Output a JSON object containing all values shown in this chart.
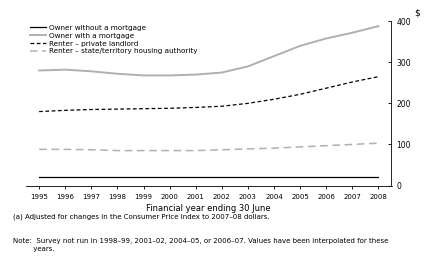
{
  "years": [
    1995,
    1996,
    1997,
    1998,
    1999,
    2000,
    2001,
    2002,
    2003,
    2004,
    2005,
    2006,
    2007,
    2008
  ],
  "owner_without_mortgage": [
    20,
    20,
    20,
    20,
    20,
    20,
    20,
    20,
    20,
    20,
    20,
    20,
    20,
    20
  ],
  "owner_with_mortgage": [
    280,
    282,
    278,
    272,
    268,
    268,
    270,
    275,
    290,
    315,
    340,
    358,
    372,
    388
  ],
  "renter_private": [
    180,
    183,
    185,
    186,
    187,
    188,
    190,
    193,
    200,
    210,
    222,
    237,
    252,
    265
  ],
  "renter_state": [
    88,
    88,
    87,
    85,
    85,
    85,
    85,
    87,
    89,
    91,
    94,
    97,
    100,
    103
  ],
  "xlim": [
    1994.5,
    2008.5
  ],
  "ylim": [
    0,
    400
  ],
  "yticks": [
    0,
    100,
    200,
    300,
    400
  ],
  "xlabel": "Financial year ending 30 June",
  "ylabel": "$",
  "legend_labels": [
    "Owner without a mortgage",
    "Owner with a mortgage",
    "Renter – private landlord",
    "Renter – state/territory housing authority"
  ],
  "note1": "(a) Adjusted for changes in the Consumer Price Index to 2007–08 dollars.",
  "note2": "Note:  Survey not run in 1998–99, 2001–02, 2004–05, or 2006–07. Values have been interpolated for these\n         years.",
  "line_color_1": "#000000",
  "line_color_2": "#b0b0b0",
  "line_color_3": "#000000",
  "line_color_4": "#b0b0b0",
  "bg_color": "#ffffff"
}
